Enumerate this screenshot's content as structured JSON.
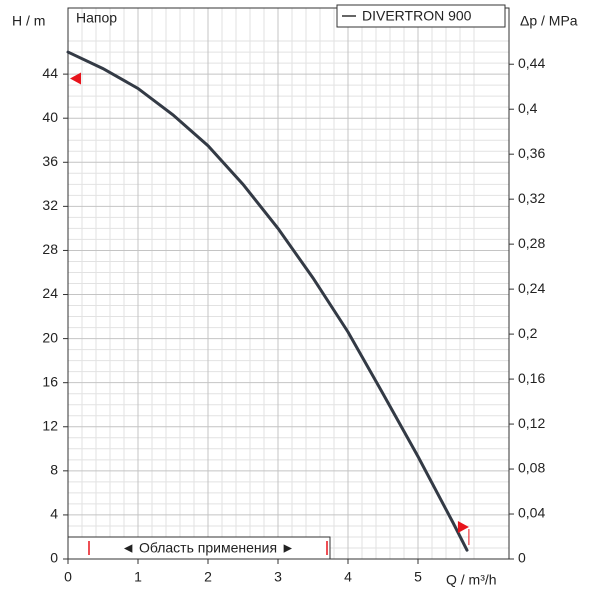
{
  "chart_data": {
    "type": "line",
    "y_axis_label": "H / m",
    "y2_axis_label": "Δp / MPa",
    "x_axis_label": "Q / m³/h",
    "annotation": "Напор",
    "range_label": "◄ Область применения ►",
    "range": [
      0.3,
      3.7
    ],
    "x": [
      0,
      0.5,
      1,
      1.5,
      2,
      2.5,
      3,
      3.5,
      4,
      4.5,
      5,
      5.5,
      5.7
    ],
    "series": [
      {
        "name": "DIVERTRON 900",
        "color": "#333a45",
        "values": [
          46,
          44.5,
          42.7,
          40.3,
          37.5,
          34,
          30,
          25.5,
          20.6,
          15,
          9.3,
          3.3,
          0.8
        ]
      }
    ],
    "markers": [
      {
        "x": 0,
        "y": 43.6
      },
      {
        "x": 5.57,
        "y": 2.9
      }
    ],
    "marker_color": "#e8141c",
    "xlim": [
      0,
      6.3
    ],
    "ylim": [
      0,
      50
    ],
    "y2lim": [
      0,
      0.49
    ],
    "xticks": [
      0,
      1,
      2,
      3,
      4,
      5
    ],
    "yticks": [
      0,
      4,
      8,
      12,
      16,
      20,
      24,
      28,
      32,
      36,
      40,
      44
    ],
    "y2ticks": [
      0,
      {
        "value": 0.04,
        "label": "0,04"
      },
      {
        "value": 0.08,
        "label": "0,08"
      },
      {
        "value": 0.12,
        "label": "0,12"
      },
      {
        "value": 0.16,
        "label": "0,16"
      },
      {
        "value": 0.2,
        "label": "0,2"
      },
      {
        "value": 0.24,
        "label": "0,24"
      },
      {
        "value": 0.28,
        "label": "0,28"
      },
      {
        "value": 0.32,
        "label": "0,32"
      },
      {
        "value": 0.36,
        "label": "0,36"
      },
      {
        "value": 0.4,
        "label": "0,4"
      },
      {
        "value": 0.44,
        "label": "0,44"
      }
    ],
    "grid": true,
    "minor_grid": true
  }
}
